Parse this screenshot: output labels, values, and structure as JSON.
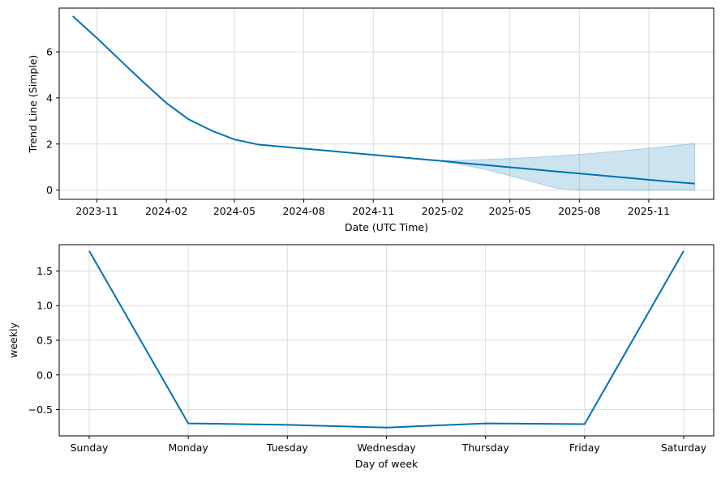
{
  "chart_data": [
    {
      "type": "line",
      "xlabel": "Date (UTC Time)",
      "ylabel": "Trend Line (Simple)",
      "x_type": "date",
      "xlim": [
        "2023-09-12",
        "2026-01-26"
      ],
      "ylim": [
        -0.4,
        7.9
      ],
      "grid": true,
      "xticks": [
        {
          "date": "2023-11-01",
          "label": "2023-11"
        },
        {
          "date": "2024-02-01",
          "label": "2024-02"
        },
        {
          "date": "2024-05-01",
          "label": "2024-05"
        },
        {
          "date": "2024-08-01",
          "label": "2024-08"
        },
        {
          "date": "2024-11-01",
          "label": "2024-11"
        },
        {
          "date": "2025-02-01",
          "label": "2025-02"
        },
        {
          "date": "2025-05-01",
          "label": "2025-05"
        },
        {
          "date": "2025-08-01",
          "label": "2025-08"
        },
        {
          "date": "2025-11-01",
          "label": "2025-11"
        }
      ],
      "yticks": [
        0,
        2,
        4,
        6
      ],
      "series": [
        {
          "color": "#0072b2",
          "x": [
            "2023-09-30",
            "2023-11-01",
            "2023-12-01",
            "2024-01-01",
            "2024-02-01",
            "2024-03-01",
            "2024-04-01",
            "2024-05-01",
            "2024-06-01",
            "2024-07-01",
            "2024-08-01",
            "2024-09-01",
            "2024-10-01",
            "2024-11-01",
            "2024-12-01",
            "2025-01-01",
            "2025-02-01",
            "2025-03-01",
            "2025-04-01",
            "2025-05-01",
            "2025-06-01",
            "2025-07-01",
            "2025-08-01",
            "2025-09-01",
            "2025-10-01",
            "2025-11-01",
            "2025-12-01",
            "2026-01-01"
          ],
          "y": [
            7.55,
            6.6,
            5.66,
            4.7,
            3.78,
            3.08,
            2.58,
            2.2,
            1.98,
            1.89,
            1.8,
            1.71,
            1.62,
            1.53,
            1.44,
            1.35,
            1.26,
            1.17,
            1.08,
            0.99,
            0.9,
            0.81,
            0.72,
            0.63,
            0.54,
            0.45,
            0.36,
            0.28
          ]
        }
      ],
      "band": {
        "color": "#0072b2",
        "opacity": 0.2,
        "x": [
          "2025-02-01",
          "2025-03-01",
          "2025-04-01",
          "2025-05-01",
          "2025-06-01",
          "2025-07-01",
          "2025-08-01",
          "2025-09-01",
          "2025-10-01",
          "2025-11-01",
          "2025-12-01",
          "2026-01-01"
        ],
        "upper": [
          1.28,
          1.3,
          1.33,
          1.37,
          1.42,
          1.48,
          1.55,
          1.63,
          1.72,
          1.82,
          1.92,
          2.02
        ],
        "lower": [
          1.24,
          1.08,
          0.88,
          0.62,
          0.35,
          0.08,
          0.0,
          0.0,
          0.0,
          0.0,
          0.0,
          0.0
        ]
      }
    },
    {
      "type": "line",
      "xlabel": "Day of week",
      "ylabel": "weekly",
      "categories": [
        "Sunday",
        "Monday",
        "Tuesday",
        "Wednesday",
        "Thursday",
        "Friday",
        "Saturday"
      ],
      "ylim": [
        -0.88,
        1.88
      ],
      "grid": true,
      "yticks": [
        {
          "value": 1.5,
          "label": "1.5"
        },
        {
          "value": 1.0,
          "label": "1.0"
        },
        {
          "value": 0.5,
          "label": "0.5"
        },
        {
          "value": 0.0,
          "label": "0.0"
        },
        {
          "value": -0.5,
          "label": "−0.5"
        }
      ],
      "series": [
        {
          "color": "#0072b2",
          "values": [
            1.79,
            -0.7,
            -0.72,
            -0.76,
            -0.7,
            -0.71,
            1.79
          ]
        }
      ]
    }
  ]
}
